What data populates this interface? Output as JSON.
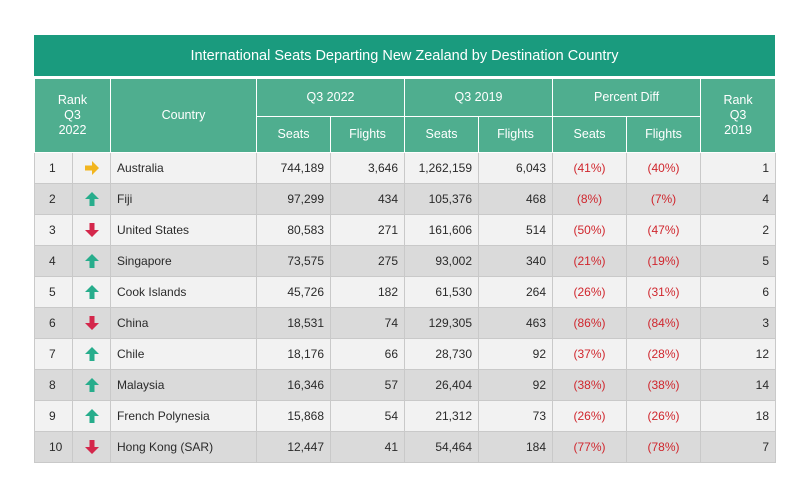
{
  "chart_data": {
    "type": "table",
    "title": "International Seats Departing New Zealand by Destination Country",
    "columns": {
      "rank_q3_2022": "Rank Q3 2022",
      "country": "Country",
      "group_q3_2022": "Q3 2022",
      "group_q3_2019": "Q3 2019",
      "group_percent_diff": "Percent Diff",
      "rank_q3_2019": "Rank Q3 2019",
      "seats": "Seats",
      "flights": "Flights"
    },
    "rows": [
      {
        "rank": "1",
        "trend": "flat",
        "country": "Australia",
        "seats_2022": "744,189",
        "flights_2022": "3,646",
        "seats_2019": "1,262,159",
        "flights_2019": "6,043",
        "seats_diff": "(41%)",
        "flights_diff": "(40%)",
        "rank_2019": "1"
      },
      {
        "rank": "2",
        "trend": "up",
        "country": "Fiji",
        "seats_2022": "97,299",
        "flights_2022": "434",
        "seats_2019": "105,376",
        "flights_2019": "468",
        "seats_diff": "(8%)",
        "flights_diff": "(7%)",
        "rank_2019": "4"
      },
      {
        "rank": "3",
        "trend": "down",
        "country": "United States",
        "seats_2022": "80,583",
        "flights_2022": "271",
        "seats_2019": "161,606",
        "flights_2019": "514",
        "seats_diff": "(50%)",
        "flights_diff": "(47%)",
        "rank_2019": "2"
      },
      {
        "rank": "4",
        "trend": "up",
        "country": "Singapore",
        "seats_2022": "73,575",
        "flights_2022": "275",
        "seats_2019": "93,002",
        "flights_2019": "340",
        "seats_diff": "(21%)",
        "flights_diff": "(19%)",
        "rank_2019": "5"
      },
      {
        "rank": "5",
        "trend": "up",
        "country": "Cook Islands",
        "seats_2022": "45,726",
        "flights_2022": "182",
        "seats_2019": "61,530",
        "flights_2019": "264",
        "seats_diff": "(26%)",
        "flights_diff": "(31%)",
        "rank_2019": "6"
      },
      {
        "rank": "6",
        "trend": "down",
        "country": "China",
        "seats_2022": "18,531",
        "flights_2022": "74",
        "seats_2019": "129,305",
        "flights_2019": "463",
        "seats_diff": "(86%)",
        "flights_diff": "(84%)",
        "rank_2019": "3"
      },
      {
        "rank": "7",
        "trend": "up",
        "country": "Chile",
        "seats_2022": "18,176",
        "flights_2022": "66",
        "seats_2019": "28,730",
        "flights_2019": "92",
        "seats_diff": "(37%)",
        "flights_diff": "(28%)",
        "rank_2019": "12"
      },
      {
        "rank": "8",
        "trend": "up",
        "country": "Malaysia",
        "seats_2022": "16,346",
        "flights_2022": "57",
        "seats_2019": "26,404",
        "flights_2019": "92",
        "seats_diff": "(38%)",
        "flights_diff": "(38%)",
        "rank_2019": "14"
      },
      {
        "rank": "9",
        "trend": "up",
        "country": "French Polynesia",
        "seats_2022": "15,868",
        "flights_2022": "54",
        "seats_2019": "21,312",
        "flights_2019": "73",
        "seats_diff": "(26%)",
        "flights_diff": "(26%)",
        "rank_2019": "18"
      },
      {
        "rank": "10",
        "trend": "down",
        "country": "Hong Kong (SAR)",
        "seats_2022": "12,447",
        "flights_2022": "41",
        "seats_2019": "54,464",
        "flights_2019": "184",
        "seats_diff": "(77%)",
        "flights_diff": "(78%)",
        "rank_2019": "7"
      }
    ]
  },
  "colors": {
    "title_bg": "#1a9b7e",
    "header_bg": "#4fae8f",
    "arrow_up": "#27ad8c",
    "arrow_down": "#d4274b",
    "arrow_flat": "#f2b51f",
    "negative_text": "#d0262d"
  },
  "icons": {
    "up": "arrow-up-icon",
    "down": "arrow-down-icon",
    "flat": "arrow-right-icon"
  }
}
